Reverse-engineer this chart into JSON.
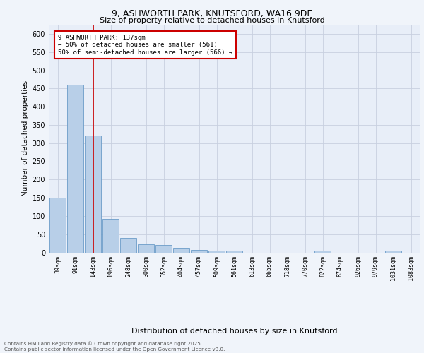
{
  "title_line1": "9, ASHWORTH PARK, KNUTSFORD, WA16 9DE",
  "title_line2": "Size of property relative to detached houses in Knutsford",
  "xlabel": "Distribution of detached houses by size in Knutsford",
  "ylabel": "Number of detached properties",
  "categories": [
    "39sqm",
    "91sqm",
    "143sqm",
    "196sqm",
    "248sqm",
    "300sqm",
    "352sqm",
    "404sqm",
    "457sqm",
    "509sqm",
    "561sqm",
    "613sqm",
    "665sqm",
    "718sqm",
    "770sqm",
    "822sqm",
    "874sqm",
    "926sqm",
    "979sqm",
    "1031sqm",
    "1083sqm"
  ],
  "values": [
    150,
    460,
    320,
    93,
    40,
    22,
    20,
    12,
    7,
    5,
    4,
    0,
    0,
    0,
    0,
    4,
    0,
    0,
    0,
    5,
    0
  ],
  "bar_color": "#b8cfe8",
  "bar_edge_color": "#6b9cc8",
  "vline_x": 2,
  "vline_color": "#cc0000",
  "annotation_text": "9 ASHWORTH PARK: 137sqm\n← 50% of detached houses are smaller (561)\n50% of semi-detached houses are larger (566) →",
  "annotation_box_color": "#ffffff",
  "annotation_box_edge": "#cc0000",
  "ylim": [
    0,
    625
  ],
  "yticks": [
    0,
    50,
    100,
    150,
    200,
    250,
    300,
    350,
    400,
    450,
    500,
    550,
    600
  ],
  "footer": "Contains HM Land Registry data © Crown copyright and database right 2025.\nContains public sector information licensed under the Open Government Licence v3.0.",
  "fig_bg_color": "#f0f4fa",
  "plot_bg_color": "#e8eef8"
}
